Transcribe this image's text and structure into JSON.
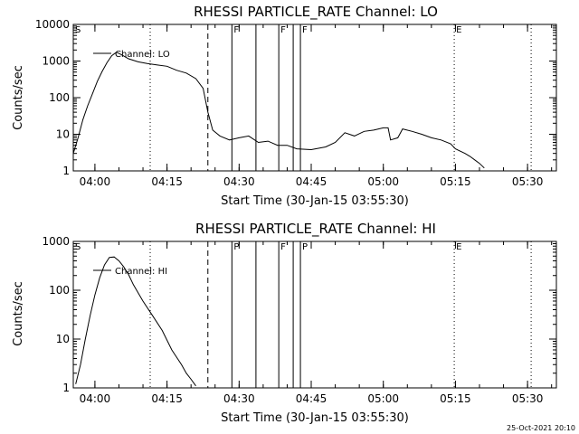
{
  "footer_stamp": "25-Oct-2021 20:10",
  "chart_data": [
    {
      "type": "line",
      "title": "RHESSI PARTICLE_RATE Channel: LO",
      "xlabel": "Start Time (30-Jan-15 03:55:30)",
      "ylabel": "Counts/sec",
      "yscale": "log",
      "ylim": [
        1,
        10000
      ],
      "xlim": [
        "03:55:30",
        "05:36:00"
      ],
      "xticks": [
        "04:00",
        "04:15",
        "04:30",
        "04:45",
        "05:00",
        "05:15",
        "05:30"
      ],
      "yticks": [
        "1",
        "10",
        "100",
        "1000",
        "10000"
      ],
      "legend": {
        "label": "Channel: LO",
        "position": "top-left"
      },
      "series": [
        {
          "name": "Channel: LO",
          "points": [
            [
              "03:55:30",
              3
            ],
            [
              "03:56:30",
              8
            ],
            [
              "03:57:30",
              25
            ],
            [
              "03:58:30",
              60
            ],
            [
              "03:59:30",
              130
            ],
            [
              "04:00:30",
              280
            ],
            [
              "04:01:30",
              520
            ],
            [
              "04:02:30",
              900
            ],
            [
              "04:03:30",
              1400
            ],
            [
              "04:04:30",
              1750
            ],
            [
              "04:05:30",
              1500
            ],
            [
              "04:07:00",
              1150
            ],
            [
              "04:09:00",
              950
            ],
            [
              "04:11:00",
              850
            ],
            [
              "04:13:00",
              780
            ],
            [
              "04:15:00",
              720
            ],
            [
              "04:17:00",
              560
            ],
            [
              "04:19:00",
              470
            ],
            [
              "04:21:00",
              330
            ],
            [
              "04:22:30",
              180
            ],
            [
              "04:23:30",
              40
            ],
            [
              "04:24:30",
              13
            ],
            [
              "04:26:00",
              9
            ],
            [
              "04:28:00",
              7
            ],
            [
              "04:30:00",
              8
            ],
            [
              "04:32:00",
              9
            ],
            [
              "04:34:00",
              6
            ],
            [
              "04:36:00",
              6.5
            ],
            [
              "04:38:00",
              5
            ],
            [
              "04:40:00",
              5
            ],
            [
              "04:42:00",
              4
            ],
            [
              "04:45:00",
              3.8
            ],
            [
              "04:48:00",
              4.5
            ],
            [
              "04:50:00",
              6
            ],
            [
              "04:52:00",
              11
            ],
            [
              "04:54:00",
              9
            ],
            [
              "04:56:00",
              12
            ],
            [
              "04:58:00",
              13
            ],
            [
              "05:00:00",
              15
            ],
            [
              "05:01:00",
              15
            ],
            [
              "05:01:30",
              7
            ],
            [
              "05:03:00",
              8
            ],
            [
              "05:04:00",
              14
            ],
            [
              "05:06:00",
              12
            ],
            [
              "05:08:00",
              10
            ],
            [
              "05:10:00",
              8
            ],
            [
              "05:12:00",
              7
            ],
            [
              "05:14:00",
              5.5
            ],
            [
              "05:15:00",
              4
            ],
            [
              "05:17:00",
              3
            ],
            [
              "05:18:00",
              2.5
            ],
            [
              "05:19:00",
              2
            ],
            [
              "05:20:00",
              1.6
            ],
            [
              "05:21:00",
              1.2
            ]
          ]
        }
      ],
      "marks": [
        {
          "time": "04:11:30",
          "style": "dotted"
        },
        {
          "time": "04:23:30",
          "style": "dashed"
        },
        {
          "time": "04:28:30",
          "style": "solid",
          "label": "F"
        },
        {
          "time": "04:33:30",
          "style": "solid"
        },
        {
          "time": "04:38:15",
          "style": "solid",
          "label": "F"
        },
        {
          "time": "04:41:15",
          "style": "solid"
        },
        {
          "time": "04:42:45",
          "style": "solid",
          "label": "F"
        },
        {
          "time": "05:14:45",
          "style": "dotted",
          "label": "E"
        },
        {
          "time": "05:30:45",
          "style": "dotted"
        }
      ],
      "start_label": "S"
    },
    {
      "type": "line",
      "title": "RHESSI PARTICLE_RATE Channel: HI",
      "xlabel": "Start Time (30-Jan-15 03:55:30)",
      "ylabel": "Counts/sec",
      "yscale": "log",
      "ylim": [
        1,
        1000
      ],
      "xlim": [
        "03:55:30",
        "05:36:00"
      ],
      "xticks": [
        "04:00",
        "04:15",
        "04:30",
        "04:45",
        "05:00",
        "05:15",
        "05:30"
      ],
      "yticks": [
        "1",
        "10",
        "100",
        "1000"
      ],
      "legend": {
        "label": "Channel: HI",
        "position": "top-left"
      },
      "series": [
        {
          "name": "Channel: HI",
          "points": [
            [
              "03:56:00",
              1.2
            ],
            [
              "03:57:00",
              3
            ],
            [
              "03:58:00",
              10
            ],
            [
              "03:59:00",
              30
            ],
            [
              "04:00:00",
              80
            ],
            [
              "04:01:00",
              180
            ],
            [
              "04:02:00",
              330
            ],
            [
              "04:03:00",
              470
            ],
            [
              "04:04:00",
              480
            ],
            [
              "04:05:00",
              400
            ],
            [
              "04:06:00",
              300
            ],
            [
              "04:07:00",
              210
            ],
            [
              "04:08:00",
              130
            ],
            [
              "04:10:00",
              60
            ],
            [
              "04:12:00",
              30
            ],
            [
              "04:14:00",
              15
            ],
            [
              "04:16:00",
              6
            ],
            [
              "04:18:00",
              3
            ],
            [
              "04:19:00",
              2
            ],
            [
              "04:20:00",
              1.5
            ],
            [
              "04:21:00",
              1.1
            ]
          ]
        }
      ],
      "marks": [
        {
          "time": "04:11:30",
          "style": "dotted"
        },
        {
          "time": "04:23:30",
          "style": "dashed"
        },
        {
          "time": "04:28:30",
          "style": "solid",
          "label": "P"
        },
        {
          "time": "04:33:30",
          "style": "solid"
        },
        {
          "time": "04:38:15",
          "style": "solid",
          "label": "F"
        },
        {
          "time": "04:41:15",
          "style": "solid"
        },
        {
          "time": "04:42:45",
          "style": "solid",
          "label": "P"
        },
        {
          "time": "05:14:45",
          "style": "dotted",
          "label": "E"
        },
        {
          "time": "05:30:45",
          "style": "dotted"
        }
      ],
      "start_label": "S"
    }
  ]
}
